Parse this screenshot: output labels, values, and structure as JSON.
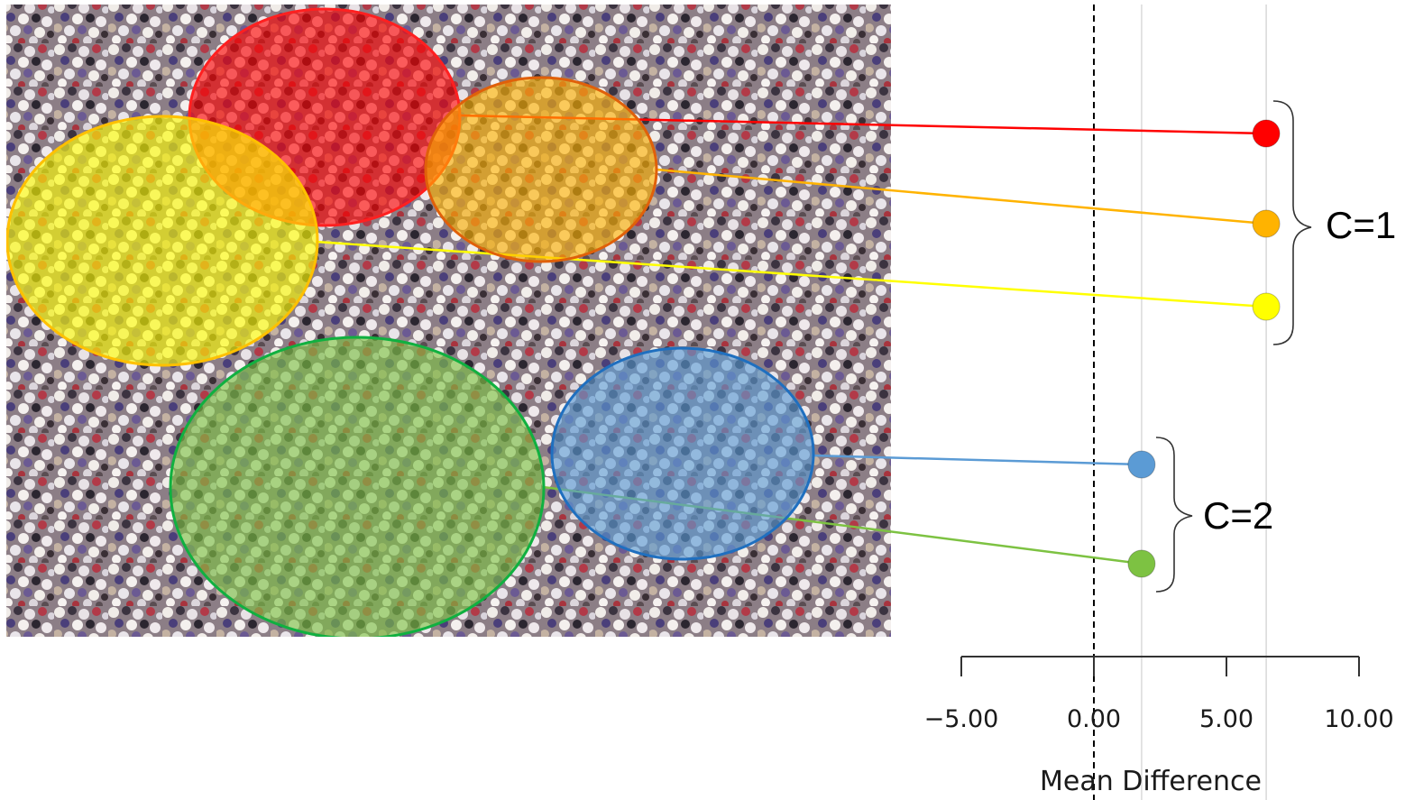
{
  "chart_data": {
    "type": "scatter",
    "xlabel": "Mean Difference",
    "ylabel": "",
    "xlim": [
      -5,
      10
    ],
    "x_ticks": [
      -5,
      0,
      5,
      10
    ],
    "x_tick_labels": [
      "−5.00",
      "0.00",
      "5.00",
      "10.00"
    ],
    "reference_line": {
      "x": 0,
      "style": "dashed"
    },
    "grid": "vertical",
    "series": [
      {
        "color": "#ff0000",
        "x": 6.5,
        "cluster": 1
      },
      {
        "color": "#ffb300",
        "x": 6.5,
        "cluster": 1
      },
      {
        "color": "#ffff00",
        "x": 6.5,
        "cluster": 1
      },
      {
        "color": "#5b9bd5",
        "x": 1.8,
        "cluster": 2
      },
      {
        "color": "#7dc242",
        "x": 1.8,
        "cluster": 2
      }
    ],
    "clusters": [
      {
        "label": "C=1",
        "members": [
          0,
          1,
          2
        ]
      },
      {
        "label": "C=2",
        "members": [
          3,
          4
        ]
      }
    ]
  },
  "image": {
    "description_icon": "crowd-photo",
    "regions": [
      {
        "color": "#ff0000",
        "stroke": "#ff2020",
        "series": 0
      },
      {
        "color": "#ffb300",
        "stroke": "#e0600a",
        "series": 1
      },
      {
        "color": "#ffff00",
        "stroke": "#ffc000",
        "series": 2
      },
      {
        "color": "#5b9bd5",
        "stroke": "#1f6fbf",
        "series": 3
      },
      {
        "color": "#7dc242",
        "stroke": "#10b040",
        "series": 4
      }
    ]
  }
}
